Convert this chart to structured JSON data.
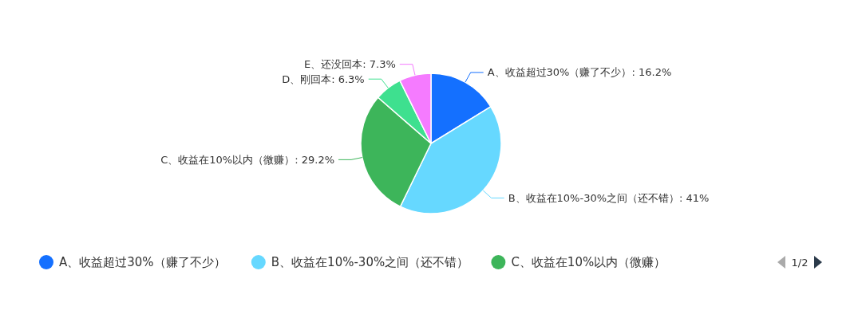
{
  "chart_data": {
    "type": "pie",
    "categories": [
      "A、收益超过30%（赚了不少）",
      "B、收益在10%-30%之间（还不错）",
      "C、收益在10%以内（微赚）",
      "D、刚回本",
      "E、还没回本"
    ],
    "values": [
      16.2,
      41,
      29.2,
      6.3,
      7.3
    ],
    "value_labels": [
      ": 16.2%",
      ": 41%",
      ": 29.2%",
      ": 6.3%",
      ": 7.3%"
    ],
    "colors": [
      "#1470ff",
      "#66d8ff",
      "#3db55a",
      "#3ee08f",
      "#f57bff"
    ],
    "legend": "bottom",
    "annotations": [
      "1/2"
    ]
  }
}
